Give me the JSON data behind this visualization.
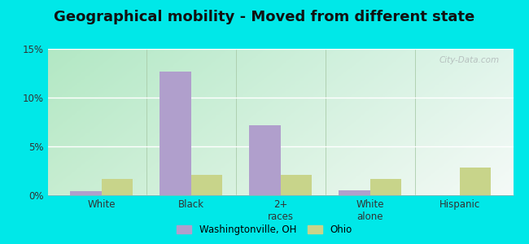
{
  "title": "Geographical mobility - Moved from different state",
  "categories": [
    "White",
    "Black",
    "2+\nraces",
    "White\nalone",
    "Hispanic"
  ],
  "washingtonville_values": [
    0.4,
    12.7,
    7.2,
    0.5,
    0.0
  ],
  "ohio_values": [
    1.7,
    2.1,
    2.1,
    1.7,
    2.8
  ],
  "washingtonville_color": "#b09fcc",
  "ohio_color": "#c8d48a",
  "ylim": [
    0,
    15
  ],
  "yticks": [
    0,
    5,
    10,
    15
  ],
  "yticklabels": [
    "0%",
    "5%",
    "10%",
    "15%"
  ],
  "bar_width": 0.35,
  "outer_color": "#00e8e8",
  "title_fontsize": 13,
  "legend_label_1": "Washingtonville, OH",
  "legend_label_2": "Ohio",
  "grad_color_topleft": "#c8eec8",
  "grad_color_bottomleft": "#a0e8c8",
  "grad_color_topright": "#eaf4f4",
  "grad_color_bottomright": "#d8f0e8"
}
